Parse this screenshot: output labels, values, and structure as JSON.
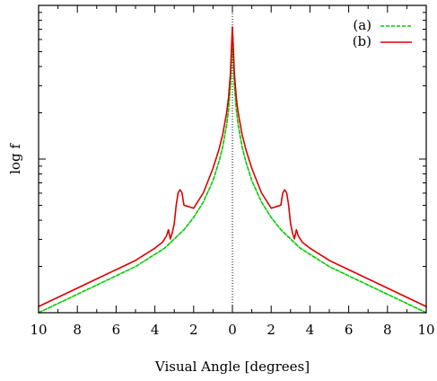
{
  "chart_data": {
    "type": "line",
    "xlabel": "Visual Angle [degrees]",
    "ylabel": "log f",
    "xlim": [
      -10,
      10
    ],
    "ylim": [
      0,
      1
    ],
    "x_tick_values": [
      -10,
      -8,
      -6,
      -4,
      -2,
      0,
      2,
      4,
      6,
      8,
      10
    ],
    "x_tick_labels": [
      "10",
      "8",
      "6",
      "4",
      "2",
      "0",
      "2",
      "4",
      "6",
      "8",
      "10"
    ],
    "y_ticks_labeled": false,
    "grid": false,
    "vertical_reference_line": {
      "x": 0,
      "style": "dotted"
    },
    "legend": {
      "placement": "top-right"
    },
    "series": [
      {
        "name": "(a)",
        "color": "#00cc00",
        "dash": "dashed",
        "x": [
          -10,
          -9,
          -8,
          -7,
          -6,
          -5,
          -4,
          -3.5,
          -3,
          -2.5,
          -2,
          -1.5,
          -1,
          -0.7,
          -0.5,
          -0.3,
          -0.2,
          -0.1,
          -0.05,
          0,
          0.05,
          0.1,
          0.2,
          0.3,
          0.5,
          0.7,
          1,
          1.5,
          2,
          2.5,
          3,
          3.5,
          4,
          5,
          6,
          7,
          8,
          9,
          10
        ],
        "y": [
          0.0,
          0.03,
          0.06,
          0.09,
          0.12,
          0.15,
          0.19,
          0.21,
          0.24,
          0.27,
          0.31,
          0.36,
          0.43,
          0.49,
          0.54,
          0.61,
          0.66,
          0.74,
          0.82,
          0.93,
          0.82,
          0.74,
          0.66,
          0.61,
          0.54,
          0.49,
          0.43,
          0.36,
          0.31,
          0.27,
          0.24,
          0.21,
          0.19,
          0.15,
          0.12,
          0.09,
          0.06,
          0.03,
          0.0
        ]
      },
      {
        "name": "(b)",
        "color": "#dd0000",
        "dash": "solid",
        "x": [
          -10,
          -9,
          -8,
          -7,
          -6,
          -5,
          -4,
          -3.6,
          -3.4,
          -3.3,
          -3.2,
          -3.1,
          -3.0,
          -2.9,
          -2.8,
          -2.7,
          -2.6,
          -2.5,
          -2,
          -1.5,
          -1,
          -0.7,
          -0.5,
          -0.3,
          -0.2,
          -0.1,
          -0.05,
          0,
          0.05,
          0.1,
          0.2,
          0.3,
          0.5,
          0.7,
          1,
          1.5,
          2,
          2.5,
          2.6,
          2.7,
          2.8,
          2.9,
          3.0,
          3.1,
          3.2,
          3.3,
          3.4,
          3.6,
          4,
          5,
          6,
          7,
          8,
          9,
          10
        ],
        "y": [
          0.02,
          0.05,
          0.08,
          0.11,
          0.14,
          0.17,
          0.21,
          0.23,
          0.25,
          0.27,
          0.24,
          0.26,
          0.29,
          0.35,
          0.39,
          0.4,
          0.39,
          0.35,
          0.34,
          0.39,
          0.47,
          0.53,
          0.58,
          0.65,
          0.7,
          0.78,
          0.86,
          0.93,
          0.86,
          0.78,
          0.7,
          0.65,
          0.58,
          0.53,
          0.47,
          0.39,
          0.34,
          0.35,
          0.39,
          0.4,
          0.39,
          0.35,
          0.29,
          0.26,
          0.24,
          0.27,
          0.25,
          0.23,
          0.21,
          0.17,
          0.14,
          0.11,
          0.08,
          0.05,
          0.02
        ]
      }
    ]
  }
}
